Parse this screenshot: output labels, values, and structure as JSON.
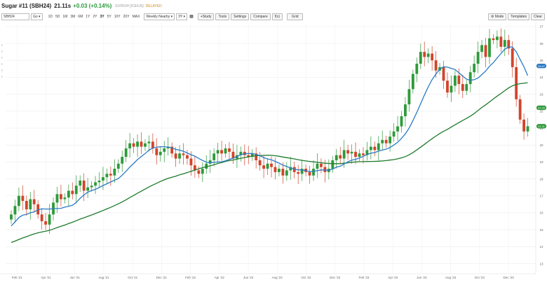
{
  "header": {
    "symbol": "Sugar #11 (SBH24)",
    "price": "21.11s",
    "change": "+0.03 (+0.14%)",
    "date": "01/05/24 [ICE/US]",
    "status": "DELAYED"
  },
  "toolbar": {
    "symbol_value": "SBH24",
    "go_label": "Go",
    "periods": [
      "1D",
      "5D",
      "1M",
      "3M",
      "6M",
      "1Y",
      "2Y",
      "3Y",
      "5Y",
      "10Y",
      "20Y",
      "MAX"
    ],
    "active_period": "3Y",
    "interval_select": "Weekly Nearby",
    "range_select": "3Y",
    "calendar_icon": "calendar-icon",
    "study_label": "+Study",
    "tools_label": "Tools",
    "settings_label": "Settings",
    "compare_label": "Compare",
    "fx_label": "f(x)",
    "grid_label": "Grid",
    "mode_label": "Mode",
    "templates_label": "Templates",
    "clear_label": "Clear",
    "gear_icon": "gear-icon"
  },
  "colors": {
    "up": "#2e9a3a",
    "down": "#d2442c",
    "ma_fast": "#2a7bc4",
    "ma_slow": "#1e7a2c",
    "label_fast": "#2a7bc4",
    "label_slow": "#2e9a3a"
  },
  "chart_data": {
    "type": "candlestick",
    "x_ticks": [
      "Feb '21",
      "Apr '21",
      "Jun '21",
      "Aug '21",
      "Oct '21",
      "Dec '21",
      "Feb '22",
      "Apr '22",
      "Jun '22",
      "Aug '22",
      "Oct '22",
      "Dec '22",
      "Feb '23",
      "Apr '23",
      "Jun '23",
      "Aug '23",
      "Oct '23",
      "Dec '23"
    ],
    "y_ticks": [
      13,
      14,
      15,
      16,
      17,
      18,
      19,
      20,
      21,
      22,
      23,
      24,
      25,
      26,
      27
    ],
    "ylim": [
      12.4,
      27.2
    ],
    "closes": [
      15.9,
      16.4,
      17.0,
      16.7,
      16.2,
      16.8,
      16.5,
      15.9,
      15.5,
      15.3,
      15.9,
      16.6,
      17.1,
      16.8,
      16.9,
      17.3,
      17.1,
      17.6,
      17.9,
      17.3,
      17.5,
      17.6,
      17.8,
      17.9,
      18.1,
      18.3,
      18.2,
      18.6,
      18.9,
      19.3,
      19.8,
      20.1,
      19.9,
      20.2,
      19.9,
      20.1,
      20.2,
      19.8,
      19.4,
      19.6,
      19.8,
      19.9,
      19.5,
      19.2,
      19.5,
      19.4,
      19.2,
      18.8,
      18.5,
      18.3,
      18.6,
      18.9,
      19.1,
      19.5,
      19.7,
      19.5,
      19.8,
      19.6,
      19.2,
      19.4,
      19.6,
      19.4,
      19.3,
      19.5,
      19.1,
      18.8,
      18.6,
      18.9,
      18.7,
      18.4,
      18.6,
      18.2,
      18.5,
      18.7,
      18.4,
      18.3,
      18.6,
      18.4,
      18.2,
      18.6,
      18.9,
      18.7,
      18.4,
      18.6,
      19.1,
      19.4,
      19.2,
      19.7,
      19.5,
      19.6,
      19.3,
      19.5,
      19.4,
      19.7,
      19.9,
      19.7,
      20.1,
      20.3,
      20.1,
      20.5,
      20.8,
      21.1,
      21.7,
      22.4,
      23.3,
      24.2,
      24.8,
      25.5,
      25.2,
      25.4,
      25.0,
      24.4,
      24.6,
      23.8,
      23.1,
      23.5,
      24.1,
      23.6,
      23.2,
      23.6,
      24.3,
      24.8,
      25.5,
      25.9,
      25.2,
      26.3,
      26.2,
      26.4,
      25.8,
      26.2,
      25.7,
      24.6,
      22.7,
      21.5,
      20.8,
      21.11
    ],
    "ma_fast_label": "24.67",
    "ma_slow_label": "22.20",
    "last_label": "21.11"
  }
}
